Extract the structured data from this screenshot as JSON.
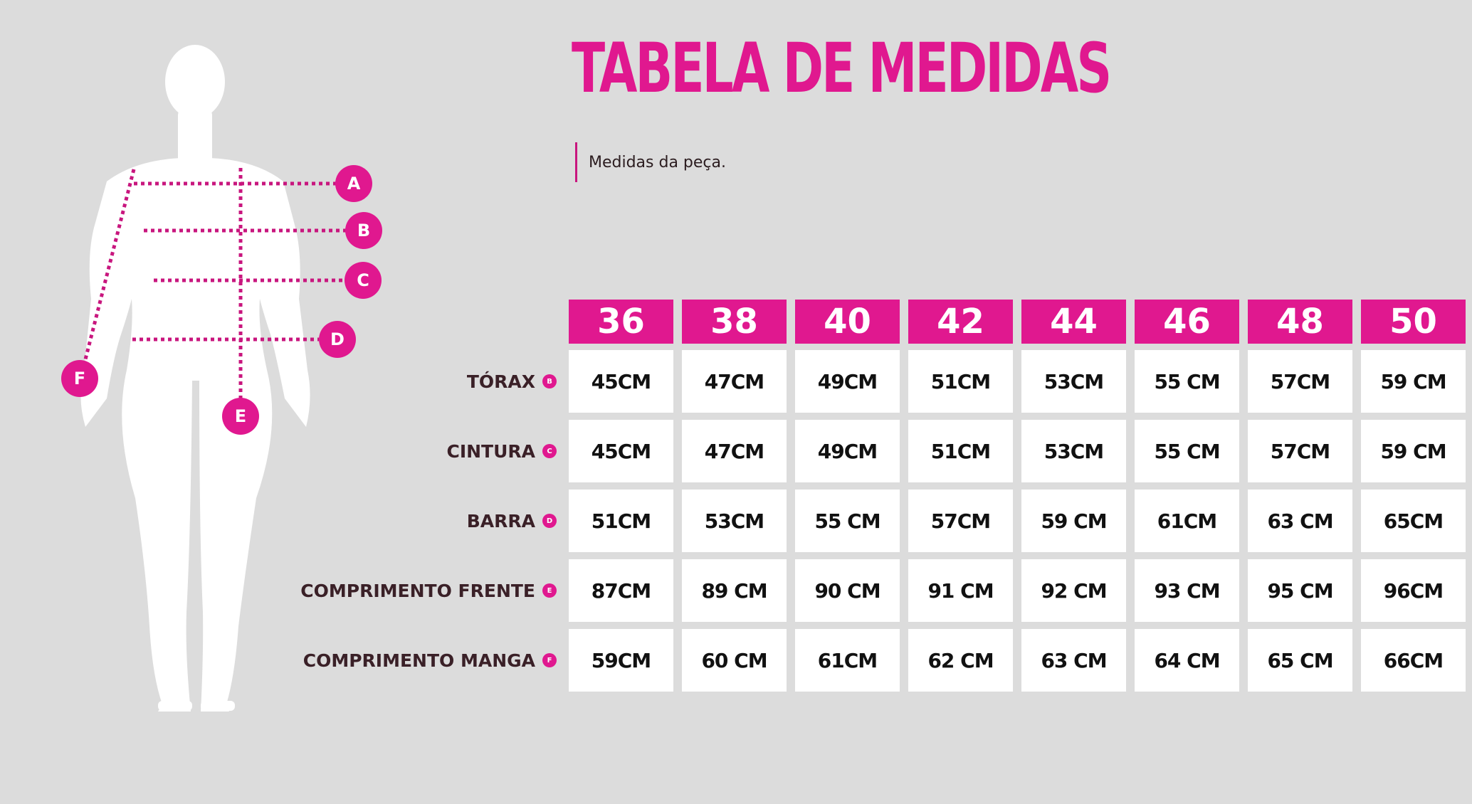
{
  "title": "TABELA DE MEDIDAS",
  "subtitle": "Medidas da peça.",
  "colors": {
    "accent": "#e0188f",
    "background": "#dcdcdc",
    "label": "#3a2027"
  },
  "figure_markers": [
    "A",
    "B",
    "C",
    "D",
    "E",
    "F"
  ],
  "sizes": [
    "36",
    "38",
    "40",
    "42",
    "44",
    "46",
    "48",
    "50"
  ],
  "rows": [
    {
      "label": "TÓRAX",
      "marker": "B",
      "values": [
        "45CM",
        "47CM",
        "49CM",
        "51CM",
        "53CM",
        "55 CM",
        "57CM",
        "59 CM"
      ]
    },
    {
      "label": "CINTURA",
      "marker": "C",
      "values": [
        "45CM",
        "47CM",
        "49CM",
        "51CM",
        "53CM",
        "55 CM",
        "57CM",
        "59 CM"
      ]
    },
    {
      "label": "BARRA",
      "marker": "D",
      "values": [
        "51CM",
        "53CM",
        "55 CM",
        "57CM",
        "59 CM",
        "61CM",
        "63 CM",
        "65CM"
      ]
    },
    {
      "label": "COMPRIMENTO FRENTE",
      "marker": "E",
      "values": [
        "87CM",
        "89 CM",
        "90 CM",
        "91 CM",
        "92 CM",
        "93 CM",
        "95 CM",
        "96CM"
      ]
    },
    {
      "label": "COMPRIMENTO MANGA",
      "marker": "F",
      "values": [
        "59CM",
        "60 CM",
        "61CM",
        "62 CM",
        "63 CM",
        "64 CM",
        "65 CM",
        "66CM"
      ]
    }
  ]
}
